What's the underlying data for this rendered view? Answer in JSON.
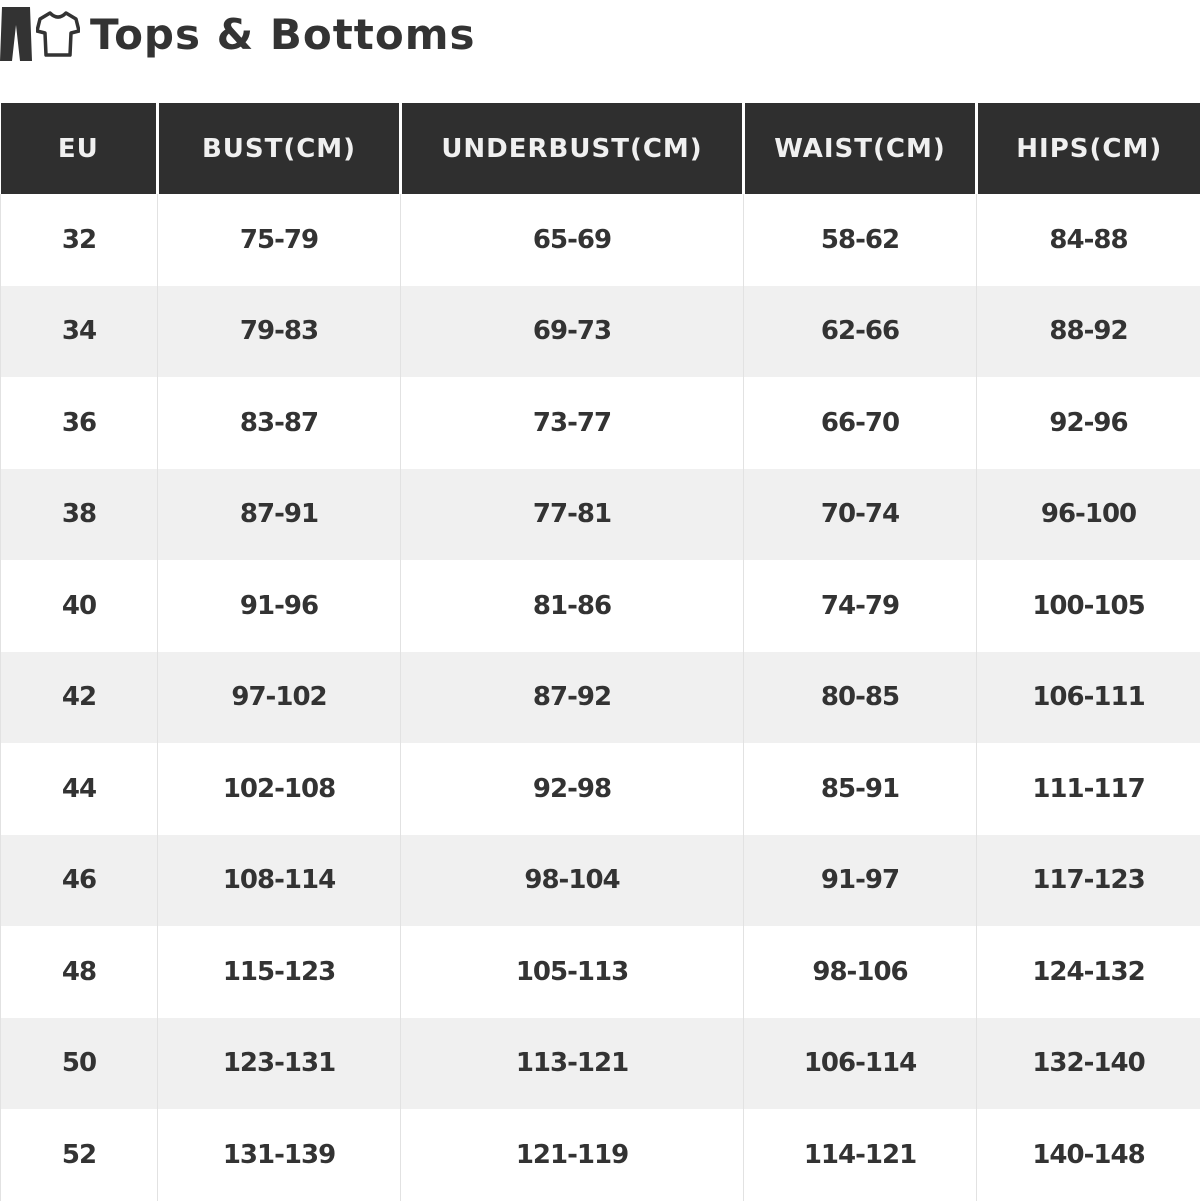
{
  "title": "Tops & Bottoms",
  "icons": [
    "pants-icon",
    "tshirt-icon"
  ],
  "colors": {
    "header_bg": "#2f2f2f",
    "header_text": "#f0f0f0",
    "alt_row": "#f0f0f0",
    "text": "#333333"
  },
  "table": {
    "headers": [
      "EU",
      "BUST(CM)",
      "UNDERBUST(CM)",
      "WAIST(CM)",
      "HIPS(CM)"
    ],
    "rows": [
      [
        "32",
        "75-79",
        "65-69",
        "58-62",
        "84-88"
      ],
      [
        "34",
        "79-83",
        "69-73",
        "62-66",
        "88-92"
      ],
      [
        "36",
        "83-87",
        "73-77",
        "66-70",
        "92-96"
      ],
      [
        "38",
        "87-91",
        "77-81",
        "70-74",
        "96-100"
      ],
      [
        "40",
        "91-96",
        "81-86",
        "74-79",
        "100-105"
      ],
      [
        "42",
        "97-102",
        "87-92",
        "80-85",
        "106-111"
      ],
      [
        "44",
        "102-108",
        "92-98",
        "85-91",
        "111-117"
      ],
      [
        "46",
        "108-114",
        "98-104",
        "91-97",
        "117-123"
      ],
      [
        "48",
        "115-123",
        "105-113",
        "98-106",
        "124-132"
      ],
      [
        "50",
        "123-131",
        "113-121",
        "106-114",
        "132-140"
      ],
      [
        "52",
        "131-139",
        "121-119",
        "114-121",
        "140-148"
      ]
    ]
  }
}
